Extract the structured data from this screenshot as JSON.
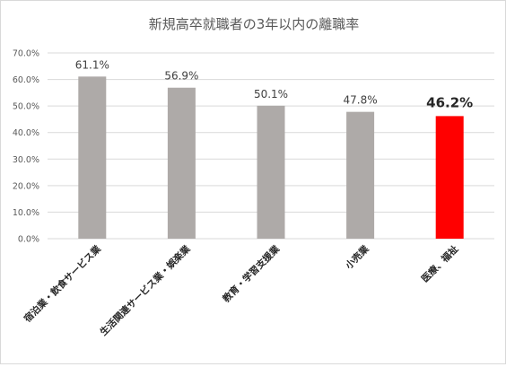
{
  "chart_data": {
    "type": "bar",
    "title": "新規高卒就職者の3年以内の離職率",
    "xlabel": "",
    "ylabel": "",
    "categories": [
      "宿泊業・飲食サービス業",
      "生活関連サービス業・娯楽業",
      "教育・学習支援業",
      "小売業",
      "医療、福祉"
    ],
    "values": [
      61.1,
      56.9,
      50.1,
      47.8,
      46.2
    ],
    "data_labels": [
      "61.1%",
      "56.9%",
      "50.1%",
      "47.8%",
      "46.2%"
    ],
    "ylim": [
      0,
      70
    ],
    "y_ticks": [
      0,
      10,
      20,
      30,
      40,
      50,
      60,
      70
    ],
    "y_tick_labels": [
      "0.0%",
      "10.0%",
      "20.0%",
      "30.0%",
      "40.0%",
      "50.0%",
      "60.0%",
      "70.0%"
    ],
    "grid": true,
    "highlight_index": 4,
    "colors": {
      "bar": "#aeaaa8",
      "highlight": "#ff0000",
      "grid": "#d9d9d9"
    }
  }
}
